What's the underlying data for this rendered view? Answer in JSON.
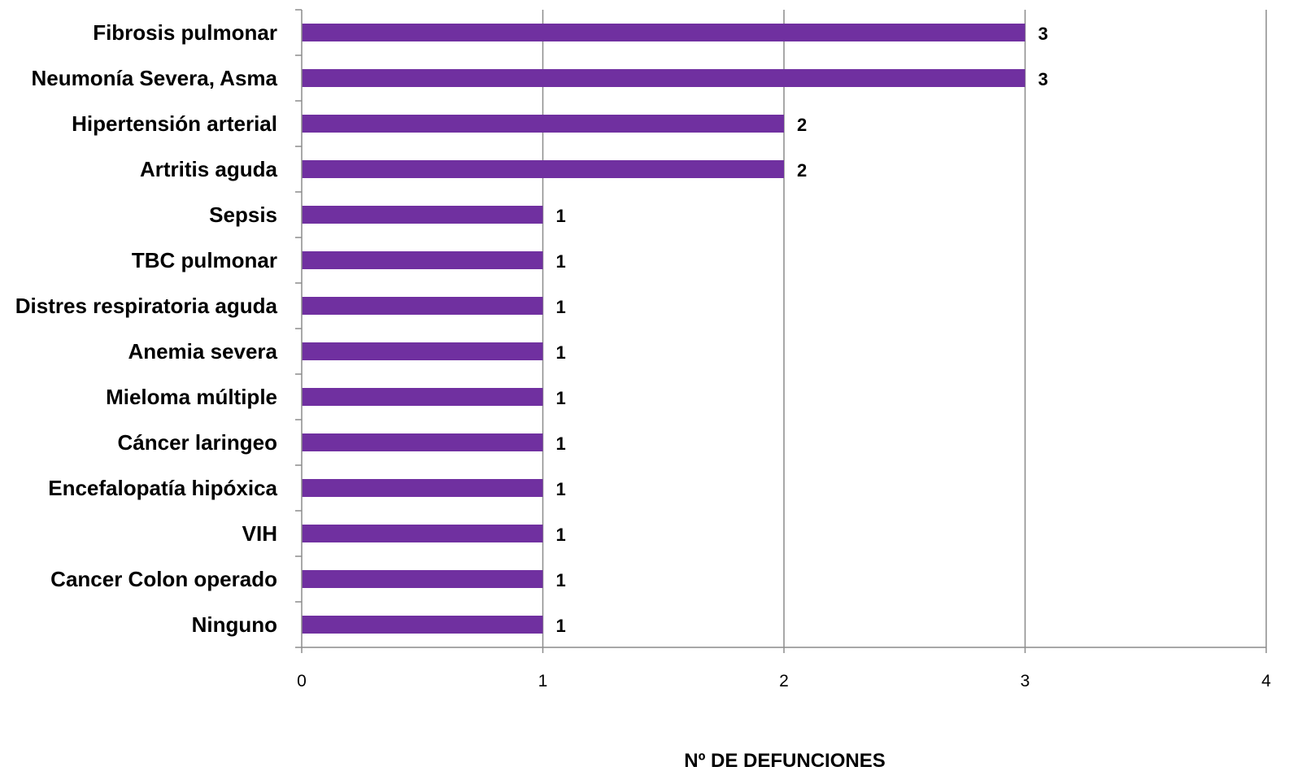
{
  "chart_data": {
    "type": "bar",
    "orientation": "horizontal",
    "categories": [
      "Fibrosis pulmonar",
      "Neumonía Severa, Asma",
      "Hipertensión arterial",
      "Artritis aguda",
      "Sepsis",
      "TBC pulmonar",
      "Distres respiratoria aguda",
      "Anemia severa",
      "Mieloma múltiple",
      "Cáncer laringeo",
      "Encefalopatía hipóxica",
      "VIH",
      "Cancer Colon operado",
      "Ninguno"
    ],
    "values": [
      3,
      3,
      2,
      2,
      1,
      1,
      1,
      1,
      1,
      1,
      1,
      1,
      1,
      1
    ],
    "xlabel": "Nº DE DEFUNCIONES",
    "ylabel": "",
    "xlim": [
      0,
      4
    ],
    "xticks": [
      "0",
      "1",
      "2",
      "3",
      "4"
    ],
    "grid": "vertical",
    "data_labels": true,
    "bar_color": "#7030a0"
  }
}
